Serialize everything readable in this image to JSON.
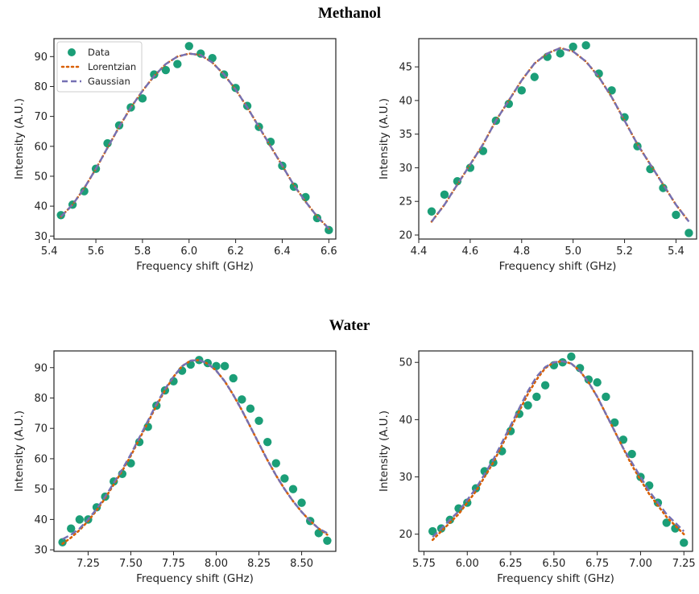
{
  "groups": {
    "methanol": "Methanol",
    "water": "Water"
  },
  "colors": {
    "data": "#1b9e77",
    "lorentzian": "#d95f02",
    "gaussian": "#7570b3"
  },
  "legend": {
    "data": "Data",
    "lorentzian": "Lorentzian",
    "gaussian": "Gaussian"
  },
  "chart_data": [
    {
      "type": "scatter",
      "group": "Methanol",
      "xlabel": "Frequency shift (GHz)",
      "ylabel": "Intensity (A.U.)",
      "xlim": [
        5.42,
        6.63
      ],
      "ylim": [
        29,
        96
      ],
      "xticks": [
        5.4,
        5.6,
        5.8,
        6.0,
        6.2,
        6.4,
        6.6
      ],
      "xtick_labels": [
        "5.4",
        "5.6",
        "5.8",
        "6.0",
        "6.2",
        "6.4",
        "6.6"
      ],
      "yticks": [
        30,
        40,
        50,
        60,
        70,
        80,
        90
      ],
      "ytick_labels": [
        "30",
        "40",
        "50",
        "60",
        "70",
        "80",
        "90"
      ],
      "legend_position": "top-left",
      "series": [
        {
          "name": "Data",
          "style": "points",
          "x": [
            5.45,
            5.5,
            5.55,
            5.6,
            5.65,
            5.7,
            5.75,
            5.8,
            5.85,
            5.9,
            5.95,
            6.0,
            6.05,
            6.1,
            6.15,
            6.2,
            6.25,
            6.3,
            6.35,
            6.4,
            6.45,
            6.5,
            6.55,
            6.6
          ],
          "y": [
            37,
            40.5,
            45,
            52.5,
            61,
            67,
            73,
            76,
            84,
            85.5,
            87.5,
            93.5,
            91,
            89.5,
            84,
            79.5,
            73.5,
            66.5,
            61.5,
            53.5,
            46.5,
            43,
            36,
            32
          ]
        },
        {
          "name": "Lorentzian",
          "style": "dotted",
          "x": [
            5.45,
            5.5,
            5.55,
            5.6,
            5.65,
            5.7,
            5.75,
            5.8,
            5.85,
            5.9,
            5.95,
            6.0,
            6.05,
            6.1,
            6.15,
            6.2,
            6.25,
            6.3,
            6.35,
            6.4,
            6.45,
            6.5,
            6.55,
            6.6
          ],
          "y": [
            36.5,
            40.5,
            46,
            52.5,
            59.5,
            66.5,
            73,
            78.5,
            83.5,
            87.5,
            90,
            91,
            90.5,
            88,
            84,
            79,
            73,
            66.5,
            60,
            53.5,
            47,
            41.5,
            36.5,
            32.5
          ]
        },
        {
          "name": "Gaussian",
          "style": "dashed",
          "x": [
            5.45,
            5.5,
            5.55,
            5.6,
            5.65,
            5.7,
            5.75,
            5.8,
            5.85,
            5.9,
            5.95,
            6.0,
            6.05,
            6.1,
            6.15,
            6.2,
            6.25,
            6.3,
            6.35,
            6.4,
            6.45,
            6.5,
            6.55,
            6.6
          ],
          "y": [
            36.5,
            40.5,
            46,
            52.5,
            59.5,
            66.5,
            73,
            78.5,
            83.5,
            87.5,
            90,
            91,
            90.5,
            88,
            84,
            79,
            73,
            66.5,
            60,
            53.5,
            47,
            41.5,
            36.5,
            32.5
          ]
        }
      ]
    },
    {
      "type": "scatter",
      "group": "Methanol",
      "xlabel": "Frequency shift (GHz)",
      "ylabel": "Intensity (A.U.)",
      "xlim": [
        4.4,
        5.48
      ],
      "ylim": [
        19.4,
        49.2
      ],
      "xticks": [
        4.4,
        4.6,
        4.8,
        5.0,
        5.2,
        5.4
      ],
      "xtick_labels": [
        "4.4",
        "4.6",
        "4.8",
        "5.0",
        "5.2",
        "5.4"
      ],
      "yticks": [
        20,
        25,
        30,
        35,
        40,
        45
      ],
      "ytick_labels": [
        "20",
        "25",
        "30",
        "35",
        "40",
        "45"
      ],
      "series": [
        {
          "name": "Data",
          "style": "points",
          "x": [
            4.45,
            4.5,
            4.55,
            4.6,
            4.65,
            4.7,
            4.75,
            4.8,
            4.85,
            4.9,
            4.95,
            5.0,
            5.05,
            5.1,
            5.15,
            5.2,
            5.25,
            5.3,
            5.35,
            5.4,
            5.45
          ],
          "y": [
            23.5,
            26,
            28,
            30,
            32.5,
            37,
            39.5,
            41.5,
            43.5,
            46.5,
            47,
            48,
            48.2,
            44,
            41.5,
            37.5,
            33.2,
            29.8,
            27,
            23,
            20.3
          ]
        },
        {
          "name": "Lorentzian",
          "style": "dotted",
          "x": [
            4.45,
            4.5,
            4.55,
            4.6,
            4.65,
            4.7,
            4.75,
            4.8,
            4.85,
            4.9,
            4.95,
            5.0,
            5.05,
            5.1,
            5.15,
            5.2,
            5.25,
            5.3,
            5.35,
            5.4,
            5.45
          ],
          "y": [
            22,
            24.5,
            27.5,
            30.5,
            33.5,
            37,
            40,
            43,
            45.5,
            47,
            47.8,
            47.3,
            45.8,
            43.5,
            40.5,
            37,
            33.5,
            30.5,
            27.5,
            24.5,
            22
          ]
        },
        {
          "name": "Gaussian",
          "style": "dashed",
          "x": [
            4.45,
            4.5,
            4.55,
            4.6,
            4.65,
            4.7,
            4.75,
            4.8,
            4.85,
            4.9,
            4.95,
            5.0,
            5.05,
            5.1,
            5.15,
            5.2,
            5.25,
            5.3,
            5.35,
            5.4,
            5.45
          ],
          "y": [
            22,
            24.5,
            27.5,
            30.5,
            33.5,
            37,
            40,
            43,
            45.5,
            47,
            47.8,
            47.3,
            45.8,
            43.5,
            40.5,
            37,
            33.5,
            30.5,
            27.5,
            24.5,
            22
          ]
        }
      ]
    },
    {
      "type": "scatter",
      "group": "Water",
      "xlabel": "Frequency shift (GHz)",
      "ylabel": "Intensity (A.U.)",
      "xlim": [
        7.05,
        8.7
      ],
      "ylim": [
        29.5,
        95.5
      ],
      "xticks": [
        7.25,
        7.5,
        7.75,
        8.0,
        8.25,
        8.5
      ],
      "xtick_labels": [
        "7.25",
        "7.50",
        "7.75",
        "8.00",
        "8.25",
        "8.50"
      ],
      "yticks": [
        30,
        40,
        50,
        60,
        70,
        80,
        90
      ],
      "ytick_labels": [
        "30",
        "40",
        "50",
        "60",
        "70",
        "80",
        "90"
      ],
      "series": [
        {
          "name": "Data",
          "style": "points",
          "x": [
            7.1,
            7.15,
            7.2,
            7.25,
            7.3,
            7.35,
            7.4,
            7.45,
            7.5,
            7.55,
            7.6,
            7.65,
            7.7,
            7.75,
            7.8,
            7.85,
            7.9,
            7.95,
            8.0,
            8.05,
            8.1,
            8.15,
            8.2,
            8.25,
            8.3,
            8.35,
            8.4,
            8.45,
            8.5,
            8.55,
            8.6,
            8.65
          ],
          "y": [
            32.5,
            37,
            40,
            40,
            44,
            47.5,
            52.5,
            55,
            58.5,
            65.5,
            70.5,
            77.5,
            82.5,
            85.5,
            89,
            91,
            92.5,
            91.5,
            90.5,
            90.5,
            86.5,
            79.5,
            76.5,
            72.5,
            65.5,
            58.5,
            53.5,
            50,
            45.5,
            39.5,
            35.5,
            33
          ]
        },
        {
          "name": "Lorentzian",
          "style": "dotted",
          "x": [
            7.1,
            7.15,
            7.2,
            7.25,
            7.3,
            7.35,
            7.4,
            7.45,
            7.5,
            7.55,
            7.6,
            7.65,
            7.7,
            7.75,
            7.8,
            7.85,
            7.9,
            7.95,
            8.0,
            8.05,
            8.1,
            8.15,
            8.2,
            8.25,
            8.3,
            8.35,
            8.4,
            8.45,
            8.5,
            8.55,
            8.6,
            8.65
          ],
          "y": [
            32,
            34,
            36.5,
            39.5,
            43,
            47,
            51.5,
            56,
            61,
            66.5,
            72,
            77.5,
            82.5,
            87,
            90.5,
            92.3,
            92.5,
            91.3,
            89,
            85.5,
            81,
            76,
            70.5,
            65,
            59.5,
            54.5,
            50,
            46,
            42.5,
            39.5,
            37,
            35
          ]
        },
        {
          "name": "Gaussian",
          "style": "dashed",
          "x": [
            7.1,
            7.15,
            7.2,
            7.25,
            7.3,
            7.35,
            7.4,
            7.45,
            7.5,
            7.55,
            7.6,
            7.65,
            7.7,
            7.75,
            7.8,
            7.85,
            7.9,
            7.95,
            8.0,
            8.05,
            8.1,
            8.15,
            8.2,
            8.25,
            8.3,
            8.35,
            8.4,
            8.45,
            8.5,
            8.55,
            8.6,
            8.65
          ],
          "y": [
            33.5,
            35,
            37,
            40,
            43.5,
            47.5,
            52,
            56.5,
            61.5,
            67,
            72.5,
            78,
            83,
            87,
            90.5,
            92.3,
            92.5,
            91.3,
            89,
            85.5,
            81,
            76,
            70.5,
            65,
            59.5,
            54.5,
            50,
            46,
            42.5,
            39.5,
            37,
            35.5
          ]
        }
      ]
    },
    {
      "type": "scatter",
      "group": "Water",
      "xlabel": "Frequency shift (GHz)",
      "ylabel": "Intensity (A.U.)",
      "xlim": [
        5.72,
        7.3
      ],
      "ylim": [
        17,
        52
      ],
      "xticks": [
        5.75,
        6.0,
        6.25,
        6.5,
        6.75,
        7.0,
        7.25
      ],
      "xtick_labels": [
        "5.75",
        "6.00",
        "6.25",
        "6.50",
        "6.75",
        "7.00",
        "7.25"
      ],
      "yticks": [
        20,
        30,
        40,
        50
      ],
      "ytick_labels": [
        "20",
        "30",
        "40",
        "50"
      ],
      "series": [
        {
          "name": "Data",
          "style": "points",
          "x": [
            5.8,
            5.85,
            5.9,
            5.95,
            6.0,
            6.05,
            6.1,
            6.15,
            6.2,
            6.25,
            6.3,
            6.35,
            6.4,
            6.45,
            6.5,
            6.55,
            6.6,
            6.65,
            6.7,
            6.75,
            6.8,
            6.85,
            6.9,
            6.95,
            7.0,
            7.05,
            7.1,
            7.15,
            7.2,
            7.25
          ],
          "y": [
            20.5,
            21,
            22.5,
            24.5,
            25.5,
            28,
            31,
            32.5,
            34.5,
            38,
            41,
            42.5,
            44,
            46,
            49.5,
            50,
            51,
            49,
            47,
            46.5,
            44,
            39.5,
            36.5,
            34,
            30,
            28.5,
            25.5,
            22,
            21,
            18.5
          ]
        },
        {
          "name": "Lorentzian",
          "style": "dotted",
          "x": [
            5.8,
            5.85,
            5.9,
            5.95,
            6.0,
            6.05,
            6.1,
            6.15,
            6.2,
            6.25,
            6.3,
            6.35,
            6.4,
            6.45,
            6.5,
            6.55,
            6.6,
            6.65,
            6.7,
            6.75,
            6.8,
            6.85,
            6.9,
            6.95,
            7.0,
            7.05,
            7.1,
            7.15,
            7.2,
            7.25
          ],
          "y": [
            19,
            20.5,
            22,
            23.5,
            25.5,
            27.5,
            30,
            32.5,
            35.5,
            38.5,
            41.5,
            44.5,
            47,
            49,
            50,
            50.2,
            49.8,
            48.5,
            46.5,
            44,
            41,
            38,
            35,
            32,
            29.5,
            27,
            25,
            23,
            21.5,
            20
          ]
        },
        {
          "name": "Gaussian",
          "style": "dashed",
          "x": [
            5.8,
            5.85,
            5.9,
            5.95,
            6.0,
            6.05,
            6.1,
            6.15,
            6.2,
            6.25,
            6.3,
            6.35,
            6.4,
            6.45,
            6.5,
            6.55,
            6.6,
            6.65,
            6.7,
            6.75,
            6.8,
            6.85,
            6.9,
            6.95,
            7.0,
            7.05,
            7.1,
            7.15,
            7.2,
            7.25
          ],
          "y": [
            19.5,
            21,
            22.5,
            24,
            26,
            28,
            30.5,
            33,
            36,
            39,
            42,
            45,
            47.5,
            49.2,
            50,
            50.2,
            49.8,
            48.5,
            46.5,
            44,
            41,
            38,
            35,
            32.5,
            30,
            27.5,
            25.5,
            23.5,
            22,
            20.5
          ]
        }
      ]
    }
  ]
}
